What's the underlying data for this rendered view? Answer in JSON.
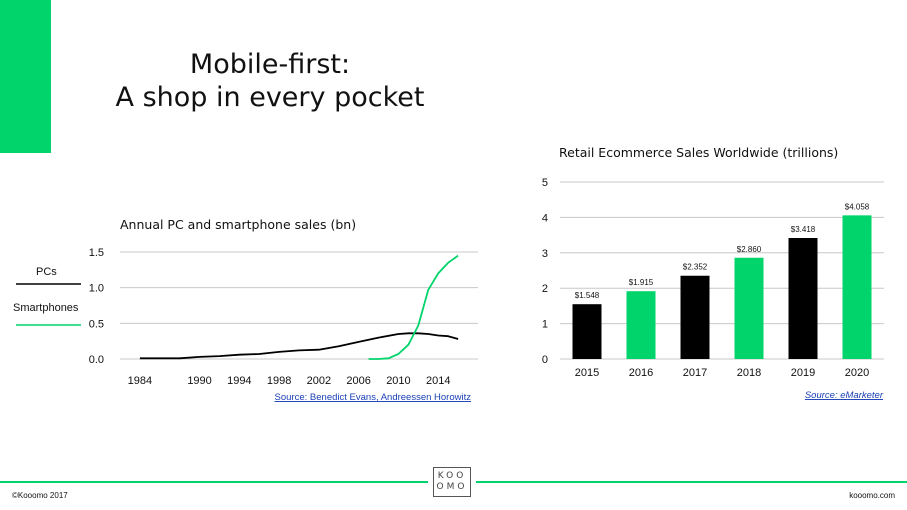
{
  "slide": {
    "title_line1": "Mobile-first:",
    "title_line2": "A shop in every pocket",
    "accent_color": "#00d46a"
  },
  "footer": {
    "copyright": "©Kooomo 2017",
    "website": "kooomo.com",
    "logo_line1": "KOO",
    "logo_line2": "OMO"
  },
  "chart_data": [
    {
      "type": "line",
      "title": "Annual PC and smartphone sales (bn)",
      "x_ticks": [
        "1984",
        "1990",
        "1994",
        "1998",
        "2002",
        "2006",
        "2010",
        "2014"
      ],
      "y_ticks": [
        "0.0",
        "0.5",
        "1.0",
        "1.5"
      ],
      "ylim": [
        0,
        1.5
      ],
      "xlim": [
        1982,
        2018
      ],
      "legend_placement": "left",
      "series": [
        {
          "name": "PCs",
          "color": "#000000",
          "x": [
            1984,
            1986,
            1988,
            1990,
            1992,
            1994,
            1996,
            1998,
            2000,
            2002,
            2004,
            2006,
            2008,
            2010,
            2011,
            2012,
            2013,
            2014,
            2015,
            2016
          ],
          "y": [
            0.01,
            0.01,
            0.01,
            0.03,
            0.04,
            0.06,
            0.07,
            0.1,
            0.12,
            0.13,
            0.18,
            0.24,
            0.3,
            0.35,
            0.36,
            0.36,
            0.35,
            0.33,
            0.32,
            0.28
          ]
        },
        {
          "name": "Smartphones",
          "color": "#00d46a",
          "x": [
            2007,
            2008,
            2009,
            2010,
            2011,
            2012,
            2013,
            2014,
            2015,
            2016
          ],
          "y": [
            0.0,
            0.0,
            0.01,
            0.07,
            0.2,
            0.47,
            0.97,
            1.2,
            1.35,
            1.45
          ]
        }
      ],
      "source": "Source: Benedict Evans, Andreessen Horowitz"
    },
    {
      "type": "bar",
      "title": "Retail Ecommerce Sales Worldwide (trillions)",
      "categories": [
        "2015",
        "2016",
        "2017",
        "2018",
        "2019",
        "2020"
      ],
      "values": [
        1.548,
        1.915,
        2.352,
        2.86,
        3.418,
        4.058
      ],
      "data_labels": [
        "$1.548",
        "$1.915",
        "$2.352",
        "$2.860",
        "$3.418",
        "$4.058"
      ],
      "bar_colors": [
        "#000000",
        "#00d46a",
        "#000000",
        "#00d46a",
        "#000000",
        "#00d46a"
      ],
      "y_ticks": [
        "0",
        "1",
        "2",
        "3",
        "4",
        "5"
      ],
      "ylim": [
        0,
        5
      ],
      "grid": true,
      "source": "Source: eMarketer"
    }
  ]
}
